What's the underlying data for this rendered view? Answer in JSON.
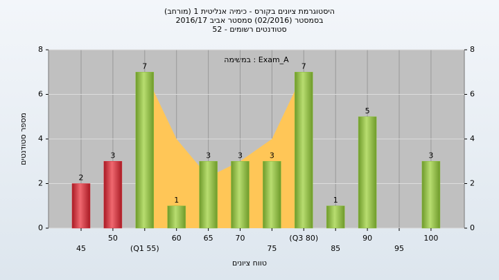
{
  "chart_data": {
    "type": "bar",
    "title_lines": [
      "(היסטוגרמת ציונים בקורס - כימיה אנליטית 1 (מורחב",
      "בסמסטר  (02/2016)  סמסטר אביב 2016/17",
      "סטודנטים רשומים - 52"
    ],
    "annotation": "במשימה : Exam_A",
    "y_label": "מספר סטודנטים",
    "x_label": "טווח ציונים",
    "categories": [
      "45",
      "50",
      "(Q1 55)",
      "60",
      "65",
      "70",
      "75",
      "(Q3 80)",
      "85",
      "90",
      "95",
      "100"
    ],
    "values": [
      2,
      3,
      7,
      1,
      3,
      3,
      3,
      7,
      1,
      5,
      null,
      3
    ],
    "colors": [
      "#d8323c",
      "#d8323c",
      "#8cbf3f",
      "#8cbf3f",
      "#8cbf3f",
      "#8cbf3f",
      "#8cbf3f",
      "#8cbf3f",
      "#8cbf3f",
      "#8cbf3f",
      "#8cbf3f",
      "#8cbf3f"
    ],
    "area_values": [
      null,
      null,
      7,
      4,
      2.3,
      3,
      4,
      7,
      null,
      null,
      null,
      null
    ],
    "area_color": "#ffc657",
    "ylim": [
      0,
      8
    ],
    "yticks": [
      0,
      2,
      4,
      6,
      8
    ],
    "y2lim": [
      0,
      8
    ],
    "y2ticks": [
      0,
      2,
      4,
      6,
      8
    ],
    "grid": true
  }
}
